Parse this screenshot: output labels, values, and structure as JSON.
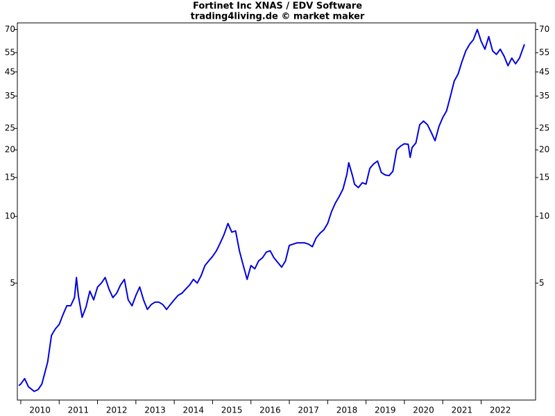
{
  "chart_data": {
    "type": "line",
    "title": "Fortinet Inc XNAS / EDV Software",
    "subtitle": "trading4living.de © market maker",
    "log_scale": true,
    "xlim": [
      2009.91,
      2023.42
    ],
    "xticks": [
      2010,
      2011,
      2012,
      2013,
      2014,
      2015,
      2016,
      2017,
      2018,
      2019,
      2020,
      2021,
      2022
    ],
    "ylim": [
      1.48,
      75
    ],
    "yticks": [
      5,
      10,
      15,
      20,
      25,
      35,
      45,
      55,
      70
    ],
    "series": [
      {
        "color": "#0000dd",
        "x": [
          2009.95,
          2010.0,
          2010.1,
          2010.2,
          2010.35,
          2010.45,
          2010.55,
          2010.7,
          2010.8,
          2010.9,
          2011.0,
          2011.1,
          2011.2,
          2011.3,
          2011.4,
          2011.45,
          2011.5,
          2011.6,
          2011.7,
          2011.8,
          2011.9,
          2012.0,
          2012.1,
          2012.2,
          2012.3,
          2012.4,
          2012.5,
          2012.6,
          2012.7,
          2012.8,
          2012.9,
          2013.0,
          2013.1,
          2013.2,
          2013.3,
          2013.4,
          2013.5,
          2013.6,
          2013.7,
          2013.8,
          2013.9,
          2014.0,
          2014.1,
          2014.2,
          2014.3,
          2014.4,
          2014.5,
          2014.6,
          2014.7,
          2014.8,
          2014.9,
          2015.0,
          2015.1,
          2015.2,
          2015.3,
          2015.4,
          2015.5,
          2015.6,
          2015.7,
          2015.8,
          2015.9,
          2016.0,
          2016.1,
          2016.2,
          2016.3,
          2016.4,
          2016.5,
          2016.6,
          2016.7,
          2016.8,
          2016.9,
          2017.0,
          2017.1,
          2017.2,
          2017.3,
          2017.4,
          2017.5,
          2017.6,
          2017.7,
          2017.8,
          2017.9,
          2018.0,
          2018.1,
          2018.2,
          2018.3,
          2018.4,
          2018.5,
          2018.55,
          2018.65,
          2018.7,
          2018.8,
          2018.9,
          2019.0,
          2019.1,
          2019.2,
          2019.3,
          2019.4,
          2019.5,
          2019.6,
          2019.7,
          2019.8,
          2019.9,
          2020.0,
          2020.1,
          2020.15,
          2020.2,
          2020.3,
          2020.4,
          2020.5,
          2020.6,
          2020.7,
          2020.8,
          2020.9,
          2021.0,
          2021.1,
          2021.2,
          2021.3,
          2021.4,
          2021.5,
          2021.6,
          2021.7,
          2021.8,
          2021.9,
          2022.0,
          2022.1,
          2022.2,
          2022.3,
          2022.4,
          2022.5,
          2022.6,
          2022.7,
          2022.8,
          2022.9,
          2023.0,
          2023.13
        ],
        "values": [
          1.72,
          1.75,
          1.85,
          1.7,
          1.62,
          1.65,
          1.75,
          2.2,
          2.9,
          3.1,
          3.25,
          3.6,
          3.95,
          3.95,
          4.3,
          5.3,
          4.4,
          3.5,
          3.9,
          4.6,
          4.2,
          4.8,
          5.0,
          5.3,
          4.7,
          4.3,
          4.5,
          4.9,
          5.2,
          4.2,
          3.95,
          4.4,
          4.8,
          4.2,
          3.8,
          4.0,
          4.1,
          4.1,
          4.0,
          3.8,
          4.0,
          4.2,
          4.4,
          4.5,
          4.7,
          4.9,
          5.2,
          5.0,
          5.4,
          6.0,
          6.3,
          6.6,
          7.0,
          7.6,
          8.3,
          9.3,
          8.5,
          8.6,
          7.0,
          6.0,
          5.2,
          6.0,
          5.8,
          6.3,
          6.5,
          6.9,
          7.0,
          6.5,
          6.2,
          5.9,
          6.3,
          7.4,
          7.5,
          7.6,
          7.6,
          7.6,
          7.5,
          7.3,
          8.0,
          8.4,
          8.7,
          9.3,
          10.5,
          11.5,
          12.3,
          13.3,
          15.5,
          17.5,
          15.2,
          14.0,
          13.5,
          14.2,
          14.0,
          16.5,
          17.3,
          17.8,
          15.8,
          15.4,
          15.3,
          16.0,
          20.0,
          20.8,
          21.3,
          21.2,
          18.5,
          20.5,
          21.5,
          26.0,
          27.0,
          26.0,
          24.0,
          22.0,
          25.5,
          28.0,
          30.0,
          35.0,
          41.0,
          44.0,
          50.0,
          56.0,
          60.0,
          63.0,
          70.0,
          62.0,
          57.0,
          65.0,
          56.0,
          54.0,
          57.0,
          53.0,
          48.0,
          52.0,
          49.0,
          52.0,
          60.0
        ]
      }
    ]
  }
}
